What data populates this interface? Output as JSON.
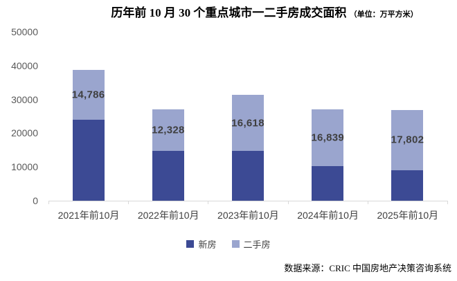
{
  "title": {
    "main": "历年前 10 月 30 个重点城市一二手房成交面积",
    "unit": "（单位：万平方米）"
  },
  "chart_data": {
    "type": "bar",
    "stacked": true,
    "title": "历年前10月30个重点城市一二手房成交面积",
    "unit_note": "单位：万平方米",
    "categories": [
      "2021年前10月",
      "2022年前10月",
      "2023年前10月",
      "2024年前10月",
      "2025年前10月"
    ],
    "series": [
      {
        "name": "新房",
        "color": "#3c4a94",
        "values": [
          24000,
          14700,
          14700,
          10200,
          9100
        ]
      },
      {
        "name": "二手房",
        "color": "#9aa5ce",
        "values": [
          14786,
          12328,
          16618,
          16839,
          17802
        ],
        "data_labels": [
          "14,786",
          "12,328",
          "16,618",
          "16,839",
          "17,802"
        ]
      }
    ],
    "ylim": [
      0,
      50000
    ],
    "yticks": [
      0,
      10000,
      20000,
      30000,
      40000,
      50000
    ],
    "grid": false,
    "legend_position": "bottom"
  },
  "legend": {
    "items": [
      {
        "label": "新房",
        "color": "#3c4a94"
      },
      {
        "label": "二手房",
        "color": "#9aa5ce"
      }
    ]
  },
  "source": "数据来源：CRIC 中国房地产决策咨询系统",
  "colors": {
    "new_home": "#3c4a94",
    "second_hand": "#9aa5ce",
    "axis_line": "#d9d9d9",
    "axis_text": "#595959",
    "data_label_text": "#3f3f3f"
  }
}
